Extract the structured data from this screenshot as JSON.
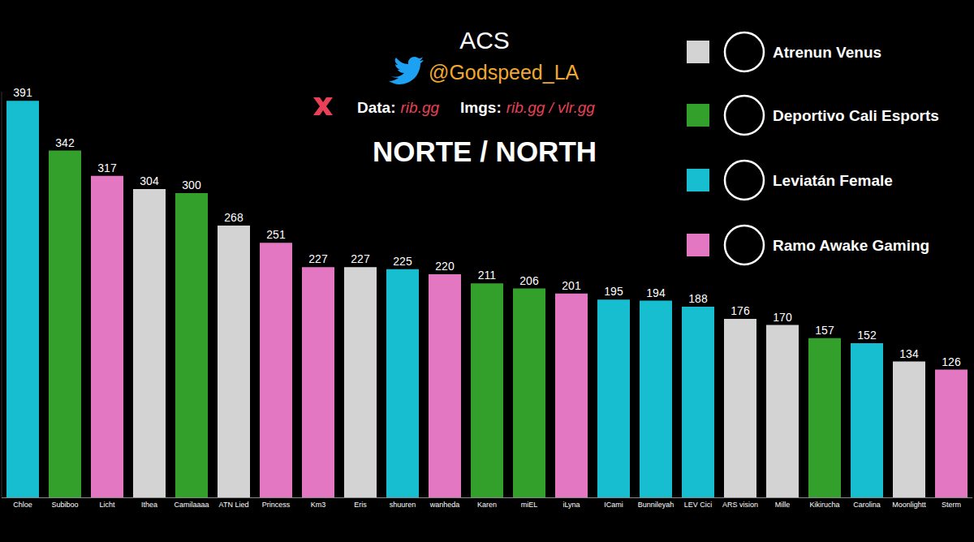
{
  "chart_data": {
    "type": "bar",
    "title": "ACS",
    "subtitle": "NORTE / NORTH",
    "annotations": [
      "@Godspeed_LA",
      "Data:",
      "rib.gg",
      "Imgs:",
      "rib.gg / vlr.gg"
    ],
    "categories": [
      "Chloe",
      "Subiboo",
      "Licht",
      "Ithea",
      "Camilaaaa",
      "ATN Lied",
      "Princess",
      "Km3",
      "Eris",
      "shuuren",
      "wanheda",
      "Karen",
      "miEL",
      "iLyna",
      "ICami",
      "Bunnileyah",
      "LEV Cici",
      "ARS vision",
      "Mille",
      "Kikirucha",
      "Carolina",
      "Moonlightt",
      "Sterm"
    ],
    "series": [
      {
        "name": "Atrenun Venus",
        "color": "#d3d3d3",
        "values": [
          null,
          null,
          null,
          304,
          null,
          268,
          null,
          null,
          227,
          null,
          null,
          null,
          null,
          null,
          null,
          null,
          null,
          176,
          170,
          null,
          null,
          134,
          null
        ]
      },
      {
        "name": "Deportivo Cali Esports",
        "color": "#33a02c",
        "values": [
          null,
          342,
          null,
          null,
          300,
          null,
          null,
          null,
          null,
          null,
          null,
          211,
          206,
          null,
          null,
          null,
          null,
          null,
          null,
          157,
          null,
          null,
          null
        ]
      },
      {
        "name": "Leviatán Female",
        "color": "#17becf",
        "values": [
          391,
          null,
          null,
          null,
          null,
          null,
          null,
          null,
          null,
          225,
          null,
          null,
          null,
          null,
          195,
          194,
          188,
          null,
          null,
          null,
          152,
          null,
          null
        ]
      },
      {
        "name": "Ramo Awake Gaming",
        "color": "#e377c2",
        "values": [
          null,
          null,
          317,
          null,
          null,
          null,
          251,
          227,
          null,
          null,
          220,
          null,
          null,
          201,
          null,
          null,
          null,
          null,
          null,
          null,
          null,
          null,
          126
        ]
      }
    ],
    "ylim": [
      0,
      400
    ],
    "data_labels": true,
    "tick_labels": "x",
    "grid": false,
    "legend": "top-right"
  }
}
